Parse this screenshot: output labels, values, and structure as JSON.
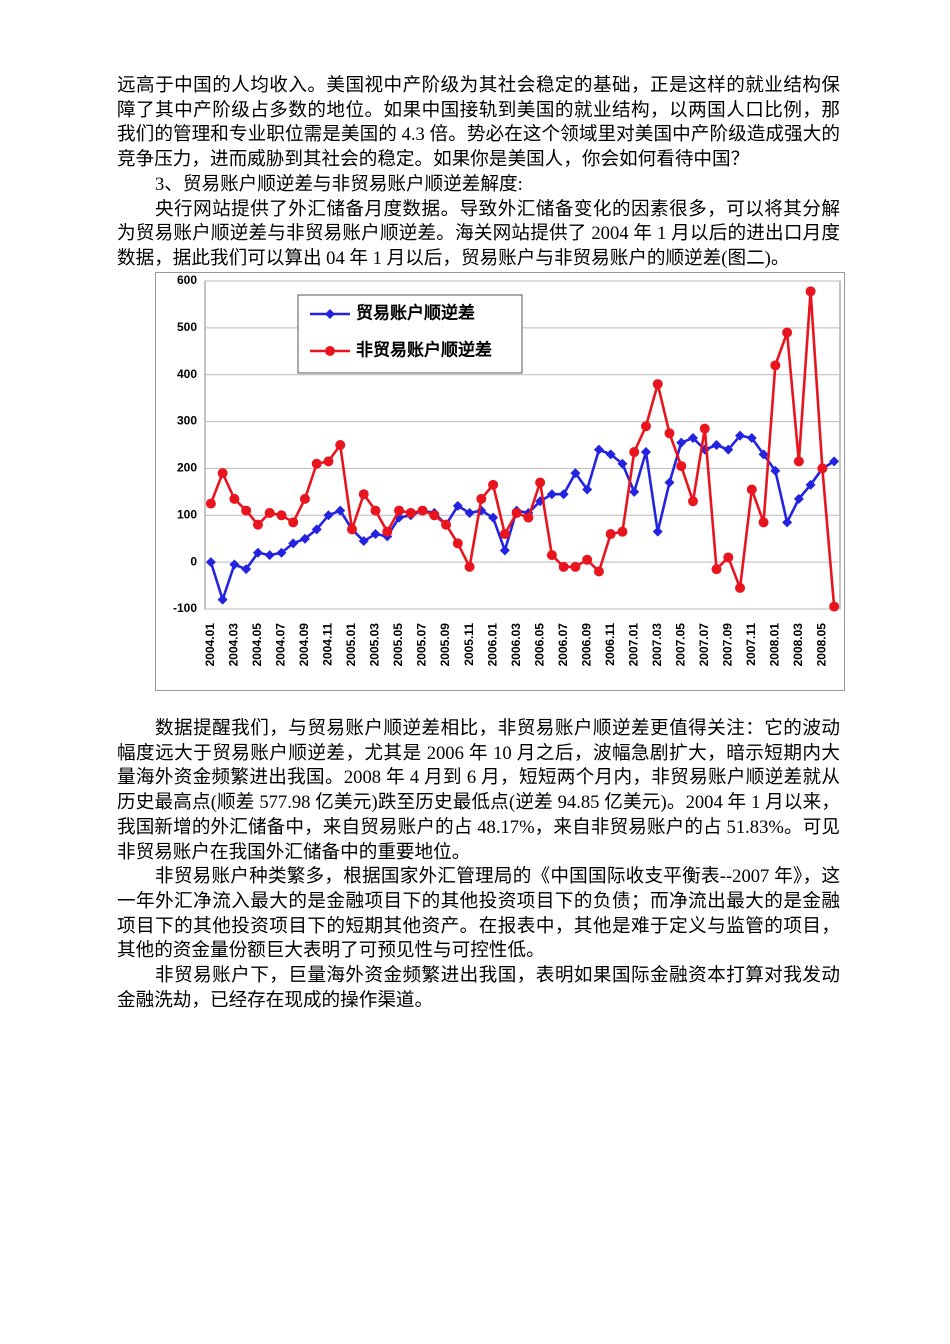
{
  "paragraphs_before": [
    "远高于中国的人均收入。美国视中产阶级为其社会稳定的基础，正是这样的就业结构保障了其中产阶级占多数的地位。如果中国接轨到美国的就业结构，以两国人口比例，那我们的管理和专业职位需是美国的 4.3 倍。势必在这个领域里对美国中产阶级造成强大的竞争压力，进而威胁到其社会的稳定。如果你是美国人，你会如何看待中国？",
    "3、贸易账户顺逆差与非贸易账户顺逆差解度:",
    "央行网站提供了外汇储备月度数据。导致外汇储备变化的因素很多，可以将其分解为贸易账户顺逆差与非贸易账户顺逆差。海关网站提供了 2004 年 1 月以后的进出口月度数据，据此我们可以算出 04 年 1 月以后，贸易账户与非贸易账户的顺逆差(图二)。"
  ],
  "chart_data": {
    "type": "line",
    "categories": [
      "2004.01",
      null,
      "2004.03",
      null,
      "2004.05",
      null,
      "2004.07",
      null,
      "2004.09",
      null,
      "2004.11",
      null,
      "2005.01",
      null,
      "2005.03",
      null,
      "2005.05",
      null,
      "2005.07",
      null,
      "2005.09",
      null,
      "2005.11",
      null,
      "2006.01",
      null,
      "2006.03",
      null,
      "2006.05",
      null,
      "2006.07",
      null,
      "2006.09",
      null,
      "2006.11",
      null,
      "2007.01",
      null,
      "2007.03",
      null,
      "2007.05",
      null,
      "2007.07",
      null,
      "2007.09",
      null,
      "2007.11",
      null,
      "2008.01",
      null,
      "2008.03",
      null,
      "2008.05",
      null
    ],
    "series": [
      {
        "name": "贸易账户顺逆差",
        "color": "#2323e0",
        "marker": "diamond",
        "values": [
          0,
          -80,
          -5,
          -15,
          20,
          15,
          20,
          40,
          50,
          70,
          100,
          110,
          70,
          45,
          60,
          55,
          95,
          100,
          110,
          105,
          80,
          120,
          105,
          110,
          95,
          25,
          110,
          105,
          130,
          145,
          145,
          190,
          155,
          240,
          230,
          210,
          150,
          235,
          65,
          170,
          255,
          265,
          240,
          250,
          240,
          270,
          265,
          230,
          195,
          85,
          135,
          165,
          200,
          215
        ]
      },
      {
        "name": "非贸易账户顺逆差",
        "color": "#e8141e",
        "marker": "circle",
        "values": [
          125,
          190,
          135,
          110,
          80,
          105,
          100,
          85,
          135,
          210,
          215,
          250,
          70,
          145,
          110,
          65,
          110,
          105,
          110,
          100,
          80,
          40,
          -10,
          135,
          165,
          60,
          105,
          95,
          170,
          15,
          -10,
          -10,
          5,
          -20,
          60,
          65,
          235,
          290,
          380,
          275,
          205,
          130,
          285,
          -15,
          10,
          -55,
          155,
          85,
          420,
          490,
          215,
          577.98,
          200,
          -94.85
        ]
      }
    ],
    "ylim": [
      -100,
      600
    ],
    "yticks": [
      {
        "value": -100,
        "label": "-100"
      },
      0,
      100,
      200,
      300,
      400,
      500,
      600
    ],
    "grid": true,
    "legend": "upper-left"
  },
  "paragraphs_after": [
    "数据提醒我们，与贸易账户顺逆差相比，非贸易账户顺逆差更值得关注：它的波动幅度远大于贸易账户顺逆差，尤其是 2006 年 10 月之后，波幅急剧扩大，暗示短期内大量海外资金频繁进出我国。2008 年 4 月到 6 月，短短两个月内，非贸易账户顺逆差就从历史最高点(顺差 577.98 亿美元)跌至历史最低点(逆差 94.85 亿美元)。2004 年 1 月以来，我国新增的外汇储备中，来自贸易账户的占 48.17%，来自非贸易账户的占 51.83%。可见非贸易账户在我国外汇储备中的重要地位。",
    "非贸易账户种类繁多，根据国家外汇管理局的《中国国际收支平衡表--2007 年》，这一年外汇净流入最大的是金融项目下的其他投资项目下的负债；而净流出最大的是金融项目下的其他投资项目下的短期其他资产。在报表中，其他是难于定义与监管的项目，其他的资金量份额巨大表明了可预见性与可控性低。",
    "非贸易账户下，巨量海外资金频繁进出我国，表明如果国际金融资本打算对我发动金融洗劫，已经存在现成的操作渠道。"
  ]
}
